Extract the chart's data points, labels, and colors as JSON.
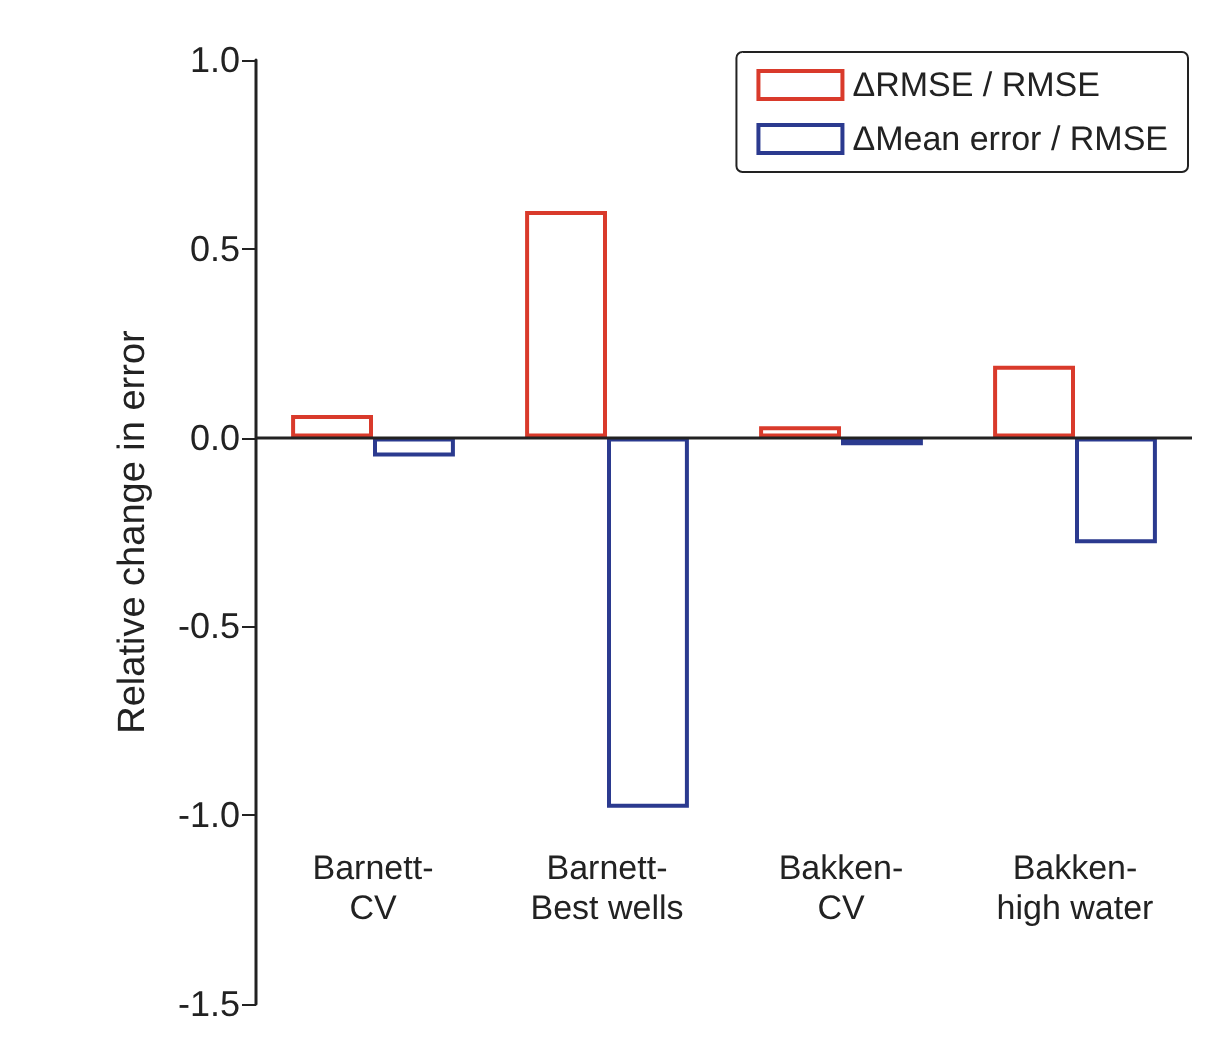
{
  "chart_data": {
    "type": "bar",
    "ylabel": "Relative change in error",
    "categories": [
      "Barnett-\nCV",
      "Barnett-\nBest wells",
      "Bakken-\nCV",
      "Bakken-\nhigh water"
    ],
    "series": [
      {
        "name": "ΔRMSE / RMSE",
        "color": "#d93a2b",
        "values": [
          0.06,
          0.6,
          0.03,
          0.19
        ]
      },
      {
        "name": "ΔMean error / RMSE",
        "color": "#2b3a8f",
        "values": [
          -0.05,
          -0.98,
          -0.02,
          -0.28
        ]
      }
    ],
    "ylim": [
      -1.5,
      1.0
    ],
    "yticks": [
      -1.5,
      {
        "value": -1,
        "label": "-1.0"
      },
      -0.5,
      {
        "value": 0,
        "label": "0.0"
      },
      0.5,
      {
        "value": 1,
        "label": "1.0"
      }
    ],
    "grid": false,
    "legend": "top right",
    "ref_lines": [
      {
        "axis": "y",
        "value": 0
      }
    ]
  }
}
